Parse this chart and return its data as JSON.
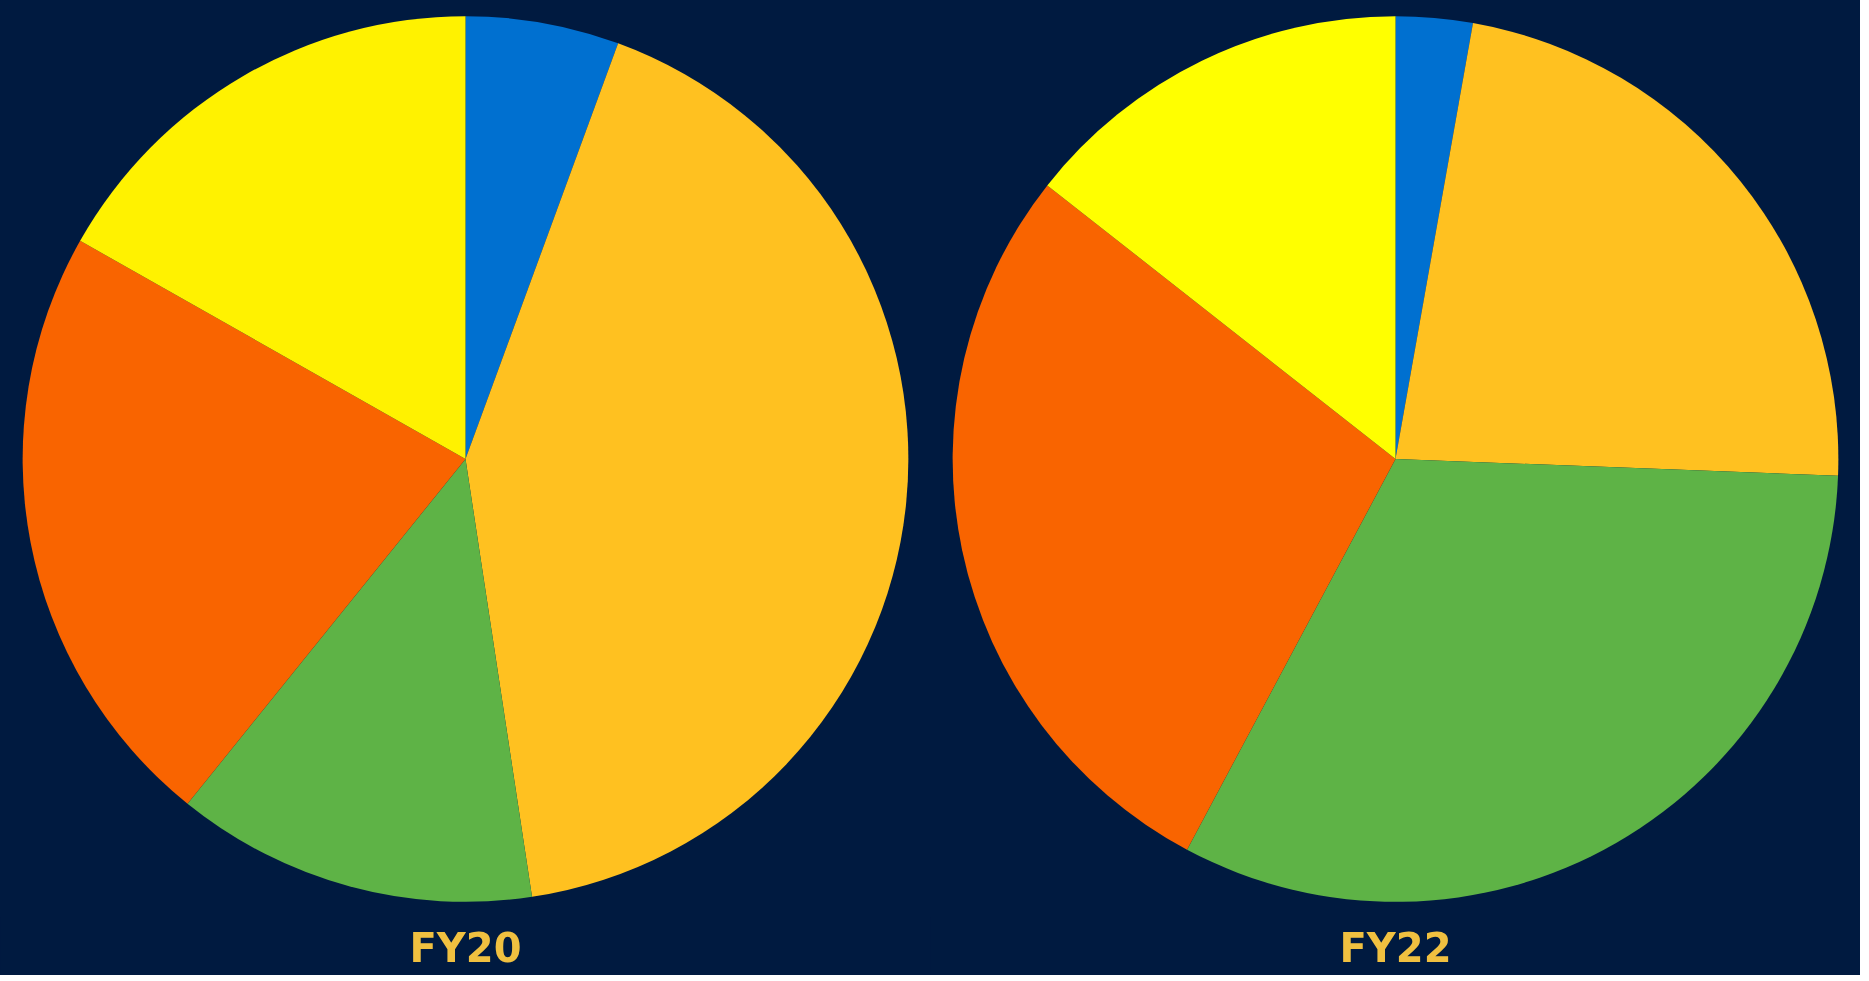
{
  "chart_data": [
    {
      "type": "pie",
      "title": "FY20",
      "categories": [
        null,
        null,
        null,
        null,
        null
      ],
      "values": [
        5.6,
        42,
        13.2,
        22.4,
        16.8
      ],
      "colors": [
        "#0070d0",
        "#ffc120",
        "#5eb346",
        "#f96400",
        "#fff200"
      ]
    },
    {
      "type": "pie",
      "title": "FY22",
      "categories": [
        null,
        null,
        null,
        null,
        null
      ],
      "values": [
        2.8,
        22.8,
        32.2,
        27.8,
        14.4
      ],
      "colors": [
        "#0070d0",
        "#ffc120",
        "#5eb346",
        "#f96400",
        "#ffff00"
      ]
    }
  ]
}
